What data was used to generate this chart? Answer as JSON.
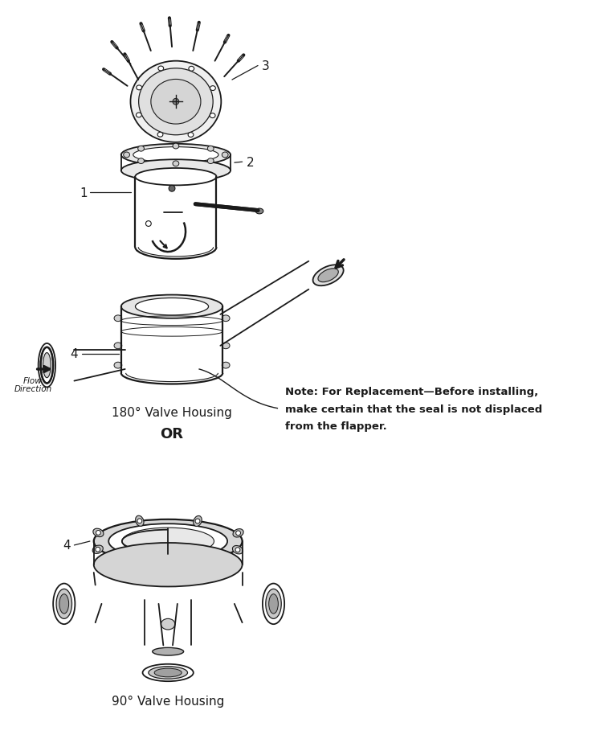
{
  "bg_color": "#ffffff",
  "line_color": "#1a1a1a",
  "label_1": "1",
  "label_2": "2",
  "label_3": "3",
  "label_4_top": "4",
  "label_4_bot": "4",
  "text_180": "180° Valve Housing",
  "text_90": "90° Valve Housing",
  "text_or": "OR",
  "text_flow_1": "Flow",
  "text_flow_2": "Direction",
  "text_note_line1": "Note: For Replacement—Before installing,",
  "text_note_line2": "make certain that the seal is not displaced",
  "text_note_line3": "from the flapper.",
  "fig_width": 7.52,
  "fig_height": 9.2,
  "dpi": 100
}
